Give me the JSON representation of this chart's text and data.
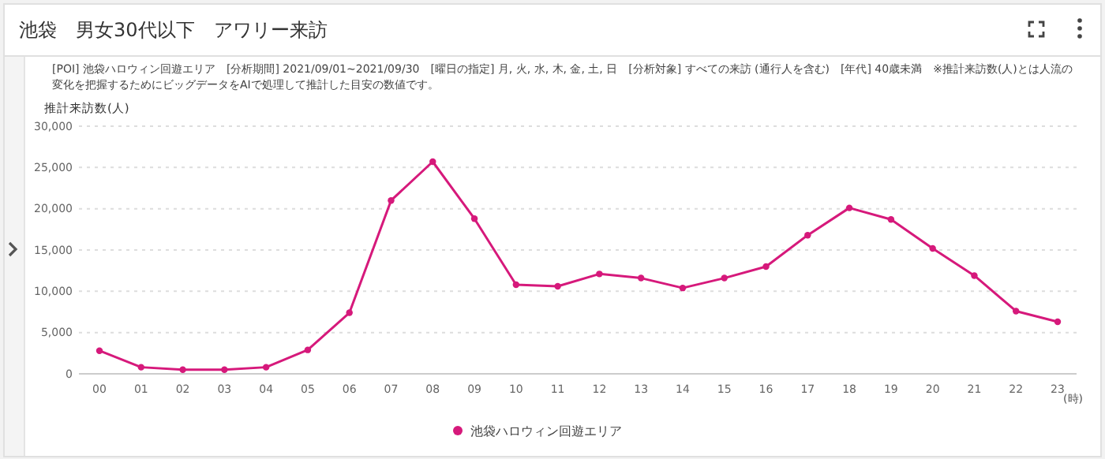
{
  "chart_data": {
    "type": "line",
    "title": "池袋　男女30代以下　アワリー来訪",
    "annotations": [
      "[POI] 池袋ハロウィン回遊エリア　[分析期間] 2021/09/01~2021/09/30　[曜日の指定] 月, 火, 水, 木, 金, 土, 日　[分析対象] すべての来訪 (通行人を含む)　[年代] 40歳未満　※推計来訪数(人)とは人流の変化を把握するためにビッグデータをAIで処理して推計した目安の数値です。"
    ],
    "ylabel": "推計来訪数(人)",
    "xlabel": "(時)",
    "categories": [
      "00",
      "01",
      "02",
      "03",
      "04",
      "05",
      "06",
      "07",
      "08",
      "09",
      "10",
      "11",
      "12",
      "13",
      "14",
      "15",
      "16",
      "17",
      "18",
      "19",
      "20",
      "21",
      "22",
      "23"
    ],
    "series": [
      {
        "name": "池袋ハロウィン回遊エリア",
        "color": "#d6197b",
        "values": [
          2800,
          800,
          500,
          500,
          800,
          2900,
          7400,
          21000,
          25700,
          18800,
          10800,
          10600,
          12100,
          11600,
          10400,
          11600,
          13000,
          16800,
          20100,
          18700,
          15200,
          11900,
          7600,
          6300
        ]
      }
    ],
    "ylim": [
      0,
      30000
    ],
    "yticks": [
      {
        "value": 0,
        "label": "0"
      },
      {
        "value": 5000,
        "label": "5,000"
      },
      {
        "value": 10000,
        "label": "10,000"
      },
      {
        "value": 15000,
        "label": "15,000"
      },
      {
        "value": 20000,
        "label": "20,000"
      },
      {
        "value": 25000,
        "label": "25,000"
      },
      {
        "value": 30000,
        "label": "30,000"
      }
    ],
    "grid": "y",
    "legend": "bottom",
    "marker": "circle",
    "line_style": "solid"
  }
}
